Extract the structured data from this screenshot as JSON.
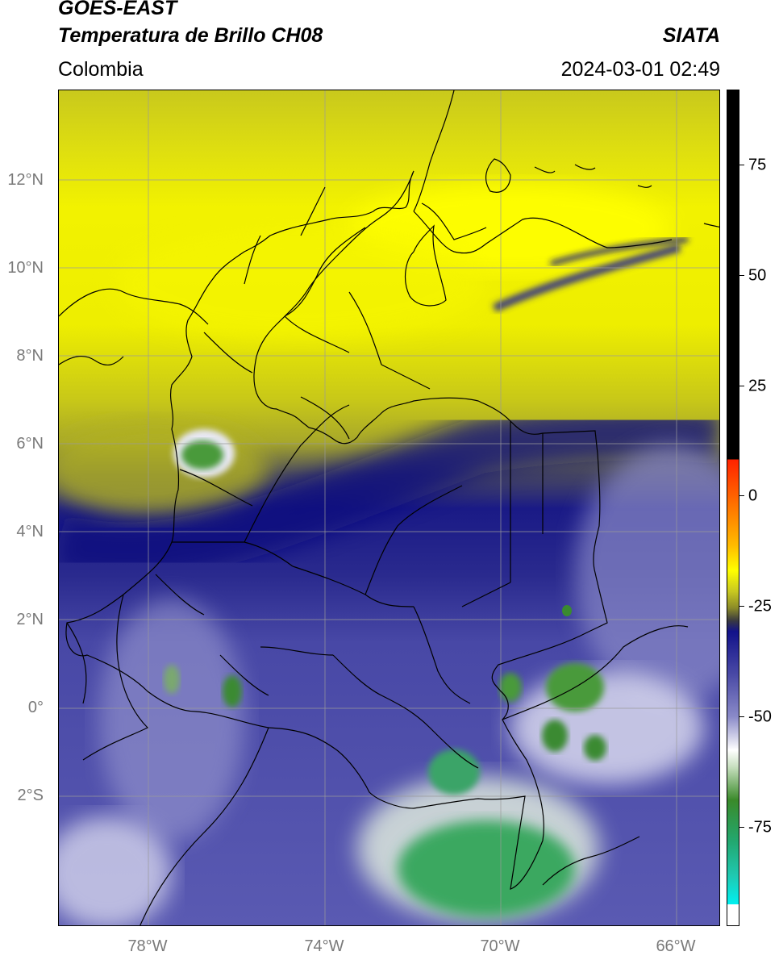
{
  "header": {
    "line1": "GOES-EAST",
    "line2": "Temperatura de Brillo CH08",
    "region": "Colombia",
    "brand": "SIATA",
    "datetime": "2024-03-01 02:49"
  },
  "axes": {
    "lat_labels": [
      "12°N",
      "10°N",
      "8°N",
      "6°N",
      "4°N",
      "2°N",
      "0°",
      "2°S"
    ],
    "lon_labels": [
      "78°W",
      "74°W",
      "70°W",
      "66°W"
    ]
  },
  "colorbar": {
    "labels": [
      "75",
      "50",
      "25",
      "0",
      "-25",
      "-50",
      "-75"
    ],
    "range": [
      -95,
      90
    ],
    "colors": {
      "black": "#000000",
      "red": "#ff2200",
      "orange": "#ff9900",
      "yellow": "#ffff00",
      "olive": "#8a8a28",
      "navy": "#12128a",
      "lavender": "#c8c8e6",
      "white": "#ffffff",
      "green": "#3a8a2a",
      "teal": "#22b48a",
      "cyan": "#00f0f0"
    }
  },
  "map_style": {
    "yellow": "#f2f200",
    "olive": "#b8b820",
    "navy": "#151585",
    "mid_blue": "#5a5ab4",
    "pale": "#c8c8e6",
    "green": "#4a9a3a",
    "teal": "#2aa878",
    "border": "#000000",
    "grid": "#9a9a9a"
  }
}
